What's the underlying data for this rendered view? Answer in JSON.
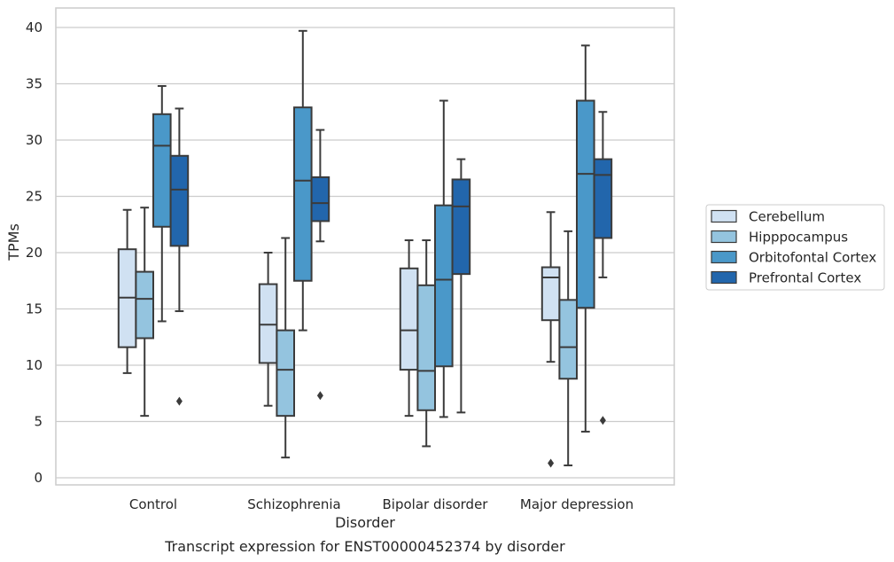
{
  "chart_data": {
    "type": "boxplot",
    "title": "",
    "caption": "Transcript expression for ENST00000452374 by disorder",
    "xlabel": "Disorder",
    "ylabel": "TPMs",
    "ylim": [
      -0.6,
      41.7
    ],
    "yticks": [
      0,
      5,
      10,
      15,
      20,
      25,
      30,
      35,
      40
    ],
    "grid": true,
    "legend_position": "right",
    "categories": [
      "Control",
      "Schizophrenia",
      "Bipolar disorder",
      "Major depression"
    ],
    "series": [
      {
        "name": "Cerebellum",
        "color": "#d0e1f2",
        "boxes": [
          {
            "low": 9.3,
            "q1": 11.6,
            "median": 16.0,
            "q3": 20.3,
            "high": 23.8,
            "outliers": []
          },
          {
            "low": 6.4,
            "q1": 10.2,
            "median": 13.6,
            "q3": 17.2,
            "high": 20.0,
            "outliers": []
          },
          {
            "low": 5.5,
            "q1": 9.6,
            "median": 13.1,
            "q3": 18.6,
            "high": 21.1,
            "outliers": []
          },
          {
            "low": 10.3,
            "q1": 14.0,
            "median": 17.8,
            "q3": 18.7,
            "high": 23.6,
            "outliers": [
              1.3
            ]
          }
        ]
      },
      {
        "name": "Hipppocampus",
        "color": "#94c4df",
        "boxes": [
          {
            "low": 5.5,
            "q1": 12.4,
            "median": 15.9,
            "q3": 18.3,
            "high": 24.0,
            "outliers": []
          },
          {
            "low": 1.8,
            "q1": 5.5,
            "median": 9.6,
            "q3": 13.1,
            "high": 21.3,
            "outliers": []
          },
          {
            "low": 2.8,
            "q1": 6.0,
            "median": 9.5,
            "q3": 17.1,
            "high": 21.1,
            "outliers": []
          },
          {
            "low": 1.1,
            "q1": 8.8,
            "median": 11.6,
            "q3": 15.8,
            "high": 21.9,
            "outliers": []
          }
        ]
      },
      {
        "name": "Orbitofontal Cortex",
        "color": "#4a98c9",
        "boxes": [
          {
            "low": 13.9,
            "q1": 22.3,
            "median": 29.5,
            "q3": 32.3,
            "high": 34.8,
            "outliers": []
          },
          {
            "low": 13.1,
            "q1": 17.5,
            "median": 26.4,
            "q3": 32.9,
            "high": 39.7,
            "outliers": []
          },
          {
            "low": 5.4,
            "q1": 9.9,
            "median": 17.6,
            "q3": 24.2,
            "high": 33.5,
            "outliers": []
          },
          {
            "low": 4.1,
            "q1": 15.1,
            "median": 27.0,
            "q3": 33.5,
            "high": 38.4,
            "outliers": []
          }
        ]
      },
      {
        "name": "Prefrontal Cortex",
        "color": "#2266ac",
        "boxes": [
          {
            "low": 14.8,
            "q1": 20.6,
            "median": 25.6,
            "q3": 28.6,
            "high": 32.8,
            "outliers": [
              6.8
            ]
          },
          {
            "low": 21.0,
            "q1": 22.8,
            "median": 24.4,
            "q3": 26.7,
            "high": 30.9,
            "outliers": [
              7.3
            ]
          },
          {
            "low": 5.8,
            "q1": 18.1,
            "median": 24.1,
            "q3": 26.5,
            "high": 28.3,
            "outliers": []
          },
          {
            "low": 17.8,
            "q1": 21.3,
            "median": 26.9,
            "q3": 28.3,
            "high": 32.5,
            "outliers": [
              5.1
            ]
          }
        ]
      }
    ]
  }
}
